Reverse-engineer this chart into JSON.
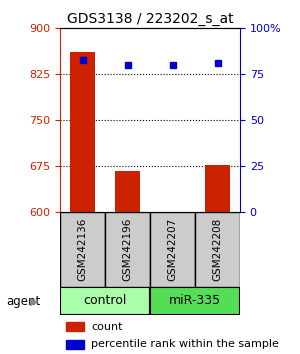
{
  "title": "GDS3138 / 223202_s_at",
  "samples": [
    "GSM242136",
    "GSM242196",
    "GSM242207",
    "GSM242208"
  ],
  "groups": [
    "control",
    "control",
    "miR-335",
    "miR-335"
  ],
  "counts": [
    862,
    668,
    601,
    677
  ],
  "percentiles": [
    83,
    80,
    80,
    81
  ],
  "ylim_left": [
    600,
    900
  ],
  "ylim_right": [
    0,
    100
  ],
  "yticks_left": [
    600,
    675,
    750,
    825,
    900
  ],
  "yticks_right": [
    0,
    25,
    50,
    75,
    100
  ],
  "bar_color": "#cc2200",
  "dot_color": "#0000cc",
  "control_color": "#aaffaa",
  "mir_color": "#55dd55",
  "sample_box_color": "#cccccc",
  "left_axis_color": "#cc2200",
  "right_axis_color": "#0000cc",
  "title_fontsize": 10,
  "tick_fontsize": 8,
  "bar_width": 0.55
}
